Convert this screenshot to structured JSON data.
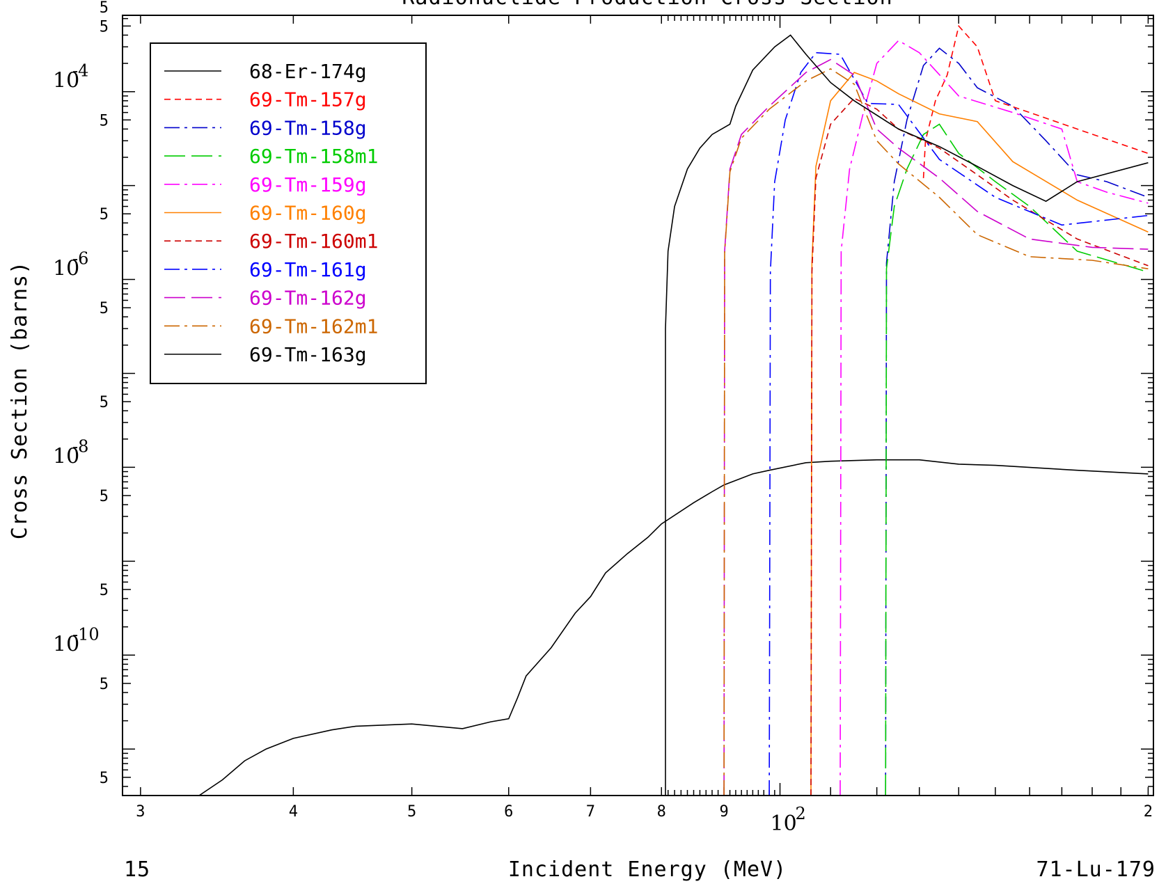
{
  "chart_data": {
    "type": "line",
    "title": "Radionuclide Production Cross Section",
    "xlabel": "Incident Energy (MeV)",
    "ylabel": "Cross Section (barns)",
    "corner_left": "15",
    "corner_right": "71-Lu-179",
    "x_scale": "log",
    "y_scale": "log",
    "xlim": [
      29,
      202
    ],
    "ylim": [
      3.2e-12,
      0.00065
    ],
    "x_ticks": [
      {
        "value": 30,
        "label": "3"
      },
      {
        "value": 40,
        "label": "4"
      },
      {
        "value": 50,
        "label": "5"
      },
      {
        "value": 60,
        "label": "6"
      },
      {
        "value": 70,
        "label": "7"
      },
      {
        "value": 80,
        "label": "8"
      },
      {
        "value": 90,
        "label": "9"
      },
      {
        "value": 200,
        "label": "2"
      }
    ],
    "x_decade_labels": [
      {
        "value": 100,
        "base": "10",
        "exp": "2"
      }
    ],
    "y_decade_labels": [
      {
        "value": 0.0001,
        "base": "10",
        "exp": "-4"
      },
      {
        "value": 1e-06,
        "base": "10",
        "exp": "-6"
      },
      {
        "value": 1e-08,
        "base": "10",
        "exp": "-8"
      },
      {
        "value": 1e-10,
        "base": "10",
        "exp": "-10"
      }
    ],
    "y_five_label": "5",
    "y_top_label": "5",
    "grid": false,
    "legend_position": "top-left",
    "series": [
      {
        "name": "68-Er-174g",
        "color": "#000000",
        "dash": "solid",
        "points": [
          [
            33.5,
            3.2e-12
          ],
          [
            35,
            4.7e-12
          ],
          [
            36.5,
            7.5e-12
          ],
          [
            38,
            1e-11
          ],
          [
            40,
            1.3e-11
          ],
          [
            43,
            1.6e-11
          ],
          [
            45,
            1.75e-11
          ],
          [
            50,
            1.85e-11
          ],
          [
            55,
            1.65e-11
          ],
          [
            58,
            1.95e-11
          ],
          [
            60,
            2.1e-11
          ],
          [
            61,
            3.5e-11
          ],
          [
            62,
            6e-11
          ],
          [
            65,
            1.2e-10
          ],
          [
            68,
            2.8e-10
          ],
          [
            70,
            4.2e-10
          ],
          [
            72,
            7.5e-10
          ],
          [
            75,
            1.2e-09
          ],
          [
            78,
            1.8e-09
          ],
          [
            80,
            2.5e-09
          ],
          [
            85,
            4.2e-09
          ],
          [
            88,
            5.5e-09
          ],
          [
            90,
            6.5e-09
          ],
          [
            95,
            8.5e-09
          ],
          [
            98,
            9.3e-09
          ],
          [
            105,
            1.12e-08
          ],
          [
            110,
            1.16e-08
          ],
          [
            120,
            1.2e-08
          ],
          [
            130,
            1.2e-08
          ],
          [
            140,
            1.08e-08
          ],
          [
            150,
            1.05e-08
          ],
          [
            175,
            9.3e-09
          ],
          [
            200,
            8.5e-09
          ]
        ]
      },
      {
        "name": "69-Tm-157g",
        "color": "#ff0000",
        "dash": "9,6",
        "points": [
          [
            131,
            1.2e-05
          ],
          [
            131.5,
            3e-05
          ],
          [
            134,
            8e-05
          ],
          [
            137,
            0.00015
          ],
          [
            140,
            0.0005
          ],
          [
            145,
            0.0003
          ],
          [
            150,
            8e-05
          ],
          [
            160,
            6e-05
          ],
          [
            175,
            4e-05
          ],
          [
            200,
            2.2e-05
          ]
        ]
      },
      {
        "name": "69-Tm-158g",
        "color": "#0000cc",
        "dash": "22,7,4,7",
        "points": [
          [
            122,
            3.2e-12
          ],
          [
            122.2,
            1.5e-06
          ],
          [
            124,
            1.1e-05
          ],
          [
            127,
            5e-05
          ],
          [
            131,
            0.00019
          ],
          [
            135,
            0.00029
          ],
          [
            140,
            0.0002
          ],
          [
            145,
            0.00011
          ],
          [
            155,
            7e-05
          ],
          [
            165,
            3e-05
          ],
          [
            175,
            1.3e-05
          ],
          [
            185,
            1.1e-05
          ],
          [
            200,
            7.5e-06
          ]
        ]
      },
      {
        "name": "69-Tm-158m1",
        "color": "#00cc00",
        "dash": "30,9",
        "points": [
          [
            122,
            3.2e-12
          ],
          [
            122.2,
            1.3e-06
          ],
          [
            124,
            6e-06
          ],
          [
            127,
            1.5e-05
          ],
          [
            131,
            3.5e-05
          ],
          [
            135,
            4.5e-05
          ],
          [
            140,
            2.2e-05
          ],
          [
            150,
            1.1e-05
          ],
          [
            160,
            6e-06
          ],
          [
            175,
            2e-06
          ],
          [
            200,
            1.2e-06
          ]
        ]
      },
      {
        "name": "69-Tm-159g",
        "color": "#ff00ff",
        "dash": "22,7,4,7",
        "points": [
          [
            112,
            3.2e-12
          ],
          [
            112.2,
            2e-06
          ],
          [
            114,
            1.5e-05
          ],
          [
            117,
            6e-05
          ],
          [
            120,
            0.0002
          ],
          [
            125,
            0.00035
          ],
          [
            130,
            0.00026
          ],
          [
            140,
            9e-05
          ],
          [
            155,
            6e-05
          ],
          [
            170,
            4e-05
          ],
          [
            175,
            1.1e-05
          ],
          [
            185,
            8.5e-06
          ],
          [
            200,
            6.5e-06
          ]
        ]
      },
      {
        "name": "69-Tm-160g",
        "color": "#ff8000",
        "dash": "solid",
        "points": [
          [
            106,
            3.2e-12
          ],
          [
            106.2,
            1.5e-06
          ],
          [
            107,
            1.6e-05
          ],
          [
            110,
            8e-05
          ],
          [
            115,
            0.00016
          ],
          [
            120,
            0.00013
          ],
          [
            125,
            9.5e-05
          ],
          [
            135,
            5.8e-05
          ],
          [
            145,
            4.8e-05
          ],
          [
            155,
            1.8e-05
          ],
          [
            175,
            7e-06
          ],
          [
            200,
            3.2e-06
          ]
        ]
      },
      {
        "name": "69-Tm-160m1",
        "color": "#cc0000",
        "dash": "9,6",
        "points": [
          [
            106,
            3.2e-12
          ],
          [
            106.2,
            1.2e-06
          ],
          [
            107,
            1.2e-05
          ],
          [
            110,
            4.5e-05
          ],
          [
            115,
            8.5e-05
          ],
          [
            120,
            6.5e-05
          ],
          [
            125,
            4e-05
          ],
          [
            135,
            2.5e-05
          ],
          [
            145,
            1.3e-05
          ],
          [
            155,
            7e-06
          ],
          [
            175,
            2.7e-06
          ],
          [
            200,
            1.4e-06
          ]
        ]
      },
      {
        "name": "69-Tm-161g",
        "color": "#0000ff",
        "dash": "22,7,4,7",
        "points": [
          [
            98,
            3.2e-12
          ],
          [
            98.2,
            1.2e-06
          ],
          [
            99,
            1.1e-05
          ],
          [
            101,
            5e-05
          ],
          [
            104,
            0.00016
          ],
          [
            107,
            0.00026
          ],
          [
            112,
            0.00025
          ],
          [
            118,
            7.5e-05
          ],
          [
            125,
            7.3e-05
          ],
          [
            135,
            1.9e-05
          ],
          [
            150,
            7.5e-06
          ],
          [
            170,
            3.8e-06
          ],
          [
            200,
            4.8e-06
          ]
        ]
      },
      {
        "name": "69-Tm-162g",
        "color": "#cc00cc",
        "dash": "30,9",
        "points": [
          [
            90,
            3.2e-12
          ],
          [
            90.1,
            2e-06
          ],
          [
            91,
            1.5e-05
          ],
          [
            93,
            3.5e-05
          ],
          [
            98,
            7e-05
          ],
          [
            105,
            0.00016
          ],
          [
            110,
            0.00022
          ],
          [
            115,
            0.00015
          ],
          [
            120,
            4e-05
          ],
          [
            125,
            2.5e-05
          ],
          [
            135,
            1.2e-05
          ],
          [
            145,
            5.3e-06
          ],
          [
            160,
            2.7e-06
          ],
          [
            180,
            2.2e-06
          ],
          [
            200,
            2.1e-06
          ]
        ]
      },
      {
        "name": "69-Tm-162m1",
        "color": "#cc6600",
        "dash": "22,7,4,7",
        "points": [
          [
            90,
            3.2e-12
          ],
          [
            90.1,
            1.9e-06
          ],
          [
            91,
            1.4e-05
          ],
          [
            93,
            3.2e-05
          ],
          [
            98,
            6.5e-05
          ],
          [
            105,
            0.00013
          ],
          [
            110,
            0.000175
          ],
          [
            115,
            0.00012
          ],
          [
            120,
            3e-05
          ],
          [
            125,
            1.7e-05
          ],
          [
            135,
            7.5e-06
          ],
          [
            145,
            3e-06
          ],
          [
            160,
            1.75e-06
          ],
          [
            180,
            1.6e-06
          ],
          [
            200,
            1.3e-06
          ]
        ]
      },
      {
        "name": "69-Tm-163g",
        "color": "#000000",
        "dash": "solid",
        "points": [
          [
            80.6,
            3.2e-12
          ],
          [
            80.6,
            3e-07
          ],
          [
            81,
            2e-06
          ],
          [
            82,
            6e-06
          ],
          [
            84,
            1.5e-05
          ],
          [
            86,
            2.5e-05
          ],
          [
            88,
            3.5e-05
          ],
          [
            91,
            4.5e-05
          ],
          [
            92,
            7e-05
          ],
          [
            95,
            0.00017
          ],
          [
            99,
            0.0003
          ],
          [
            102,
            0.0004
          ],
          [
            105,
            0.00025
          ],
          [
            110,
            0.000125
          ],
          [
            115,
            8e-05
          ],
          [
            125,
            4e-05
          ],
          [
            135,
            2.6e-05
          ],
          [
            145,
            1.6e-05
          ],
          [
            155,
            1e-05
          ],
          [
            165,
            6.8e-06
          ],
          [
            175,
            1.1e-05
          ],
          [
            200,
            1.75e-05
          ]
        ]
      }
    ]
  }
}
